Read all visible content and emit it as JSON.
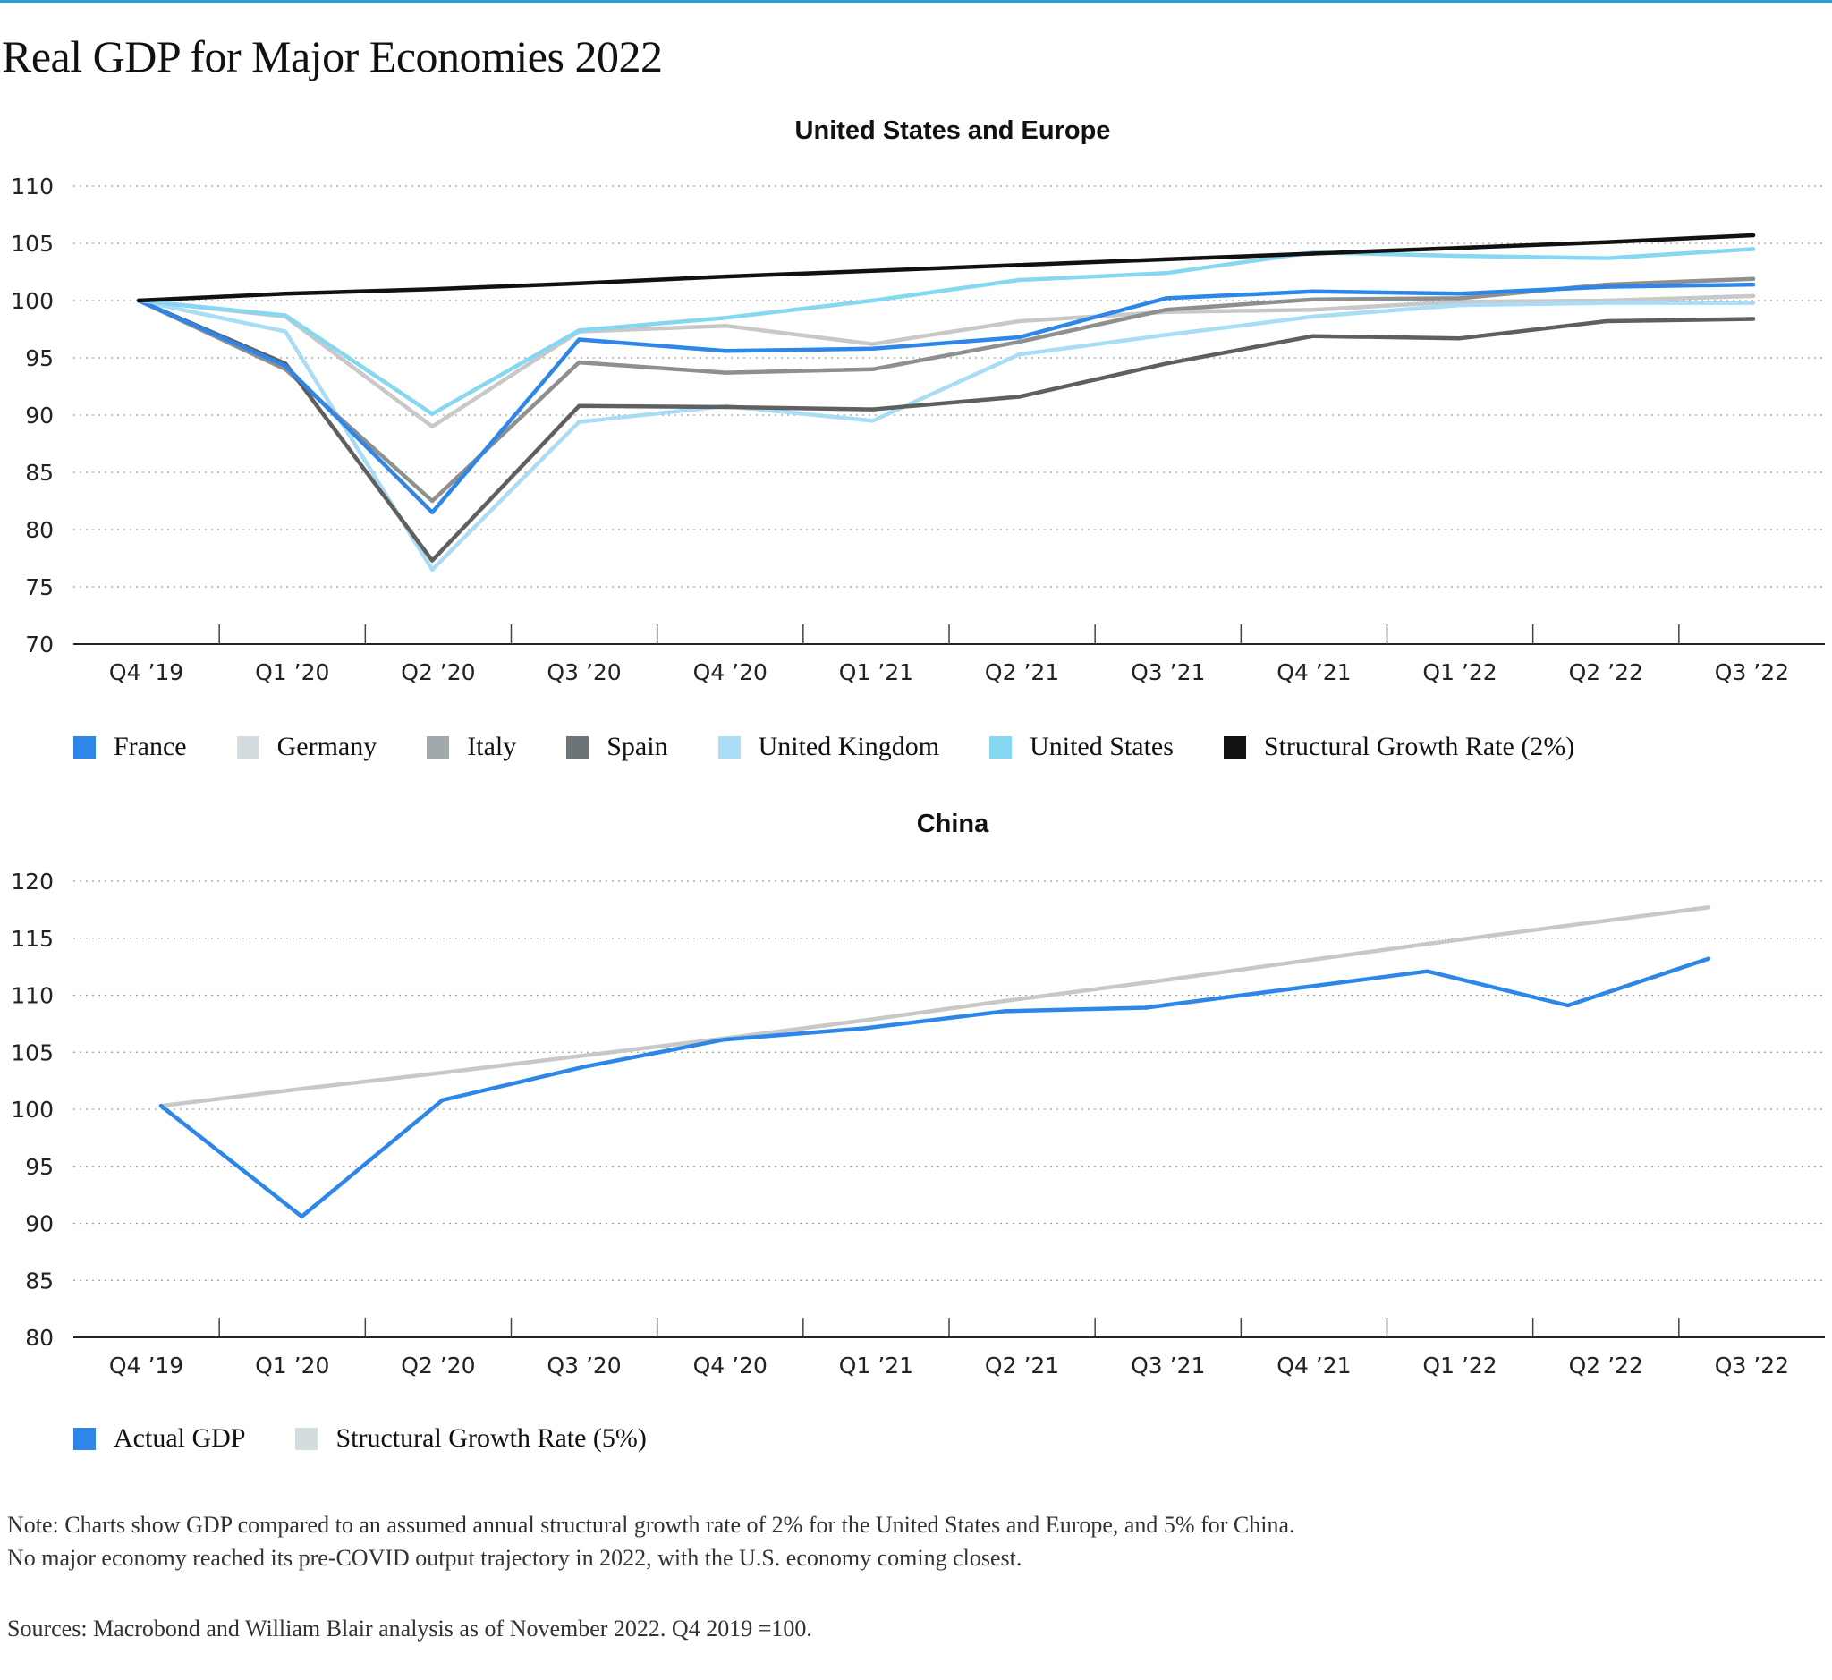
{
  "page": {
    "title": "Real GDP for Major Economies 2022",
    "note_line1": "Note: Charts show GDP compared to an assumed annual structural growth rate of 2% for the United States and Europe, and 5% for China.",
    "note_line2": "No major economy reached its pre-COVID output trajectory in 2022, with the U.S. economy coming closest.",
    "sources": "Sources: Macrobond and William Blair analysis as of November 2022. Q4 2019 =100."
  },
  "chart_data": [
    {
      "type": "line",
      "title": "United States and Europe",
      "categories": [
        "Q4 ’19",
        "Q1 ’20",
        "Q2 ’20",
        "Q3 ’20",
        "Q4 ’20",
        "Q1 ’21",
        "Q2 ’21",
        "Q3 ’21",
        "Q4 ’21",
        "Q1 ’22",
        "Q2 ’22",
        "Q3 ’22"
      ],
      "ylim": [
        70,
        110
      ],
      "yticks": [
        70,
        75,
        80,
        85,
        90,
        95,
        100,
        105,
        110
      ],
      "grid": true,
      "legend": "bottom",
      "series": [
        {
          "name": "Germany",
          "color": "#c8c8c8",
          "values": [
            100,
            98.6,
            89.0,
            97.3,
            97.8,
            96.2,
            98.2,
            99.0,
            99.2,
            99.9,
            100.0,
            100.4
          ]
        },
        {
          "name": "United Kingdom",
          "color": "#a9dcf5",
          "values": [
            100,
            97.3,
            76.5,
            89.4,
            90.8,
            89.5,
            95.3,
            97.0,
            98.6,
            99.6,
            99.8,
            99.8
          ]
        },
        {
          "name": "Italy",
          "color": "#8f8f8f",
          "values": [
            100,
            94.0,
            82.5,
            94.6,
            93.7,
            94.0,
            96.4,
            99.2,
            100.1,
            100.2,
            101.4,
            101.9
          ]
        },
        {
          "name": "Spain",
          "color": "#5f5f5f",
          "values": [
            100,
            94.5,
            77.3,
            90.8,
            90.7,
            90.5,
            91.6,
            94.5,
            96.9,
            96.7,
            98.2,
            98.4
          ]
        },
        {
          "name": "France",
          "color": "#2e86e8",
          "values": [
            100,
            94.3,
            81.5,
            96.6,
            95.6,
            95.8,
            96.8,
            100.2,
            100.8,
            100.6,
            101.2,
            101.4
          ]
        },
        {
          "name": "United States",
          "color": "#85d7f2",
          "values": [
            100,
            98.7,
            90.1,
            97.4,
            98.5,
            100.0,
            101.8,
            102.4,
            104.2,
            103.9,
            103.7,
            104.5
          ]
        },
        {
          "name": "Structural Growth Rate (2%)",
          "color": "#111111",
          "values": [
            100,
            100.6,
            101.0,
            101.5,
            102.1,
            102.6,
            103.1,
            103.6,
            104.1,
            104.6,
            105.1,
            105.7
          ]
        }
      ],
      "legend_items": [
        {
          "name": "France",
          "color": "#2e86e8"
        },
        {
          "name": "Germany",
          "color": "#d3dcde"
        },
        {
          "name": "Italy",
          "color": "#a0aaac"
        },
        {
          "name": "Spain",
          "color": "#6b7476"
        },
        {
          "name": "United Kingdom",
          "color": "#a9dcf5"
        },
        {
          "name": "United States",
          "color": "#85d7f2"
        },
        {
          "name": "Structural Growth Rate (2%)",
          "color": "#111111"
        }
      ]
    },
    {
      "type": "line",
      "title": "China",
      "categories": [
        "Q4 ’19",
        "Q1 ’20",
        "Q2 ’20",
        "Q3 ’20",
        "Q4 ’20",
        "Q1 ’21",
        "Q2 ’21",
        "Q3 ’21",
        "Q4 ’21",
        "Q1 ’22",
        "Q2 ’22",
        "Q3 ’22"
      ],
      "ylim": [
        80,
        120
      ],
      "yticks": [
        80,
        85,
        90,
        95,
        100,
        105,
        110,
        115,
        120
      ],
      "grid": true,
      "legend": "bottom",
      "series": [
        {
          "name": "Structural Growth Rate (5%)",
          "color": "#c8c8c8",
          "values": [
            100.3,
            101.8,
            103.2,
            104.7,
            106.2,
            107.8,
            109.5,
            111.1,
            112.8,
            114.5,
            116.1,
            117.7
          ]
        },
        {
          "name": "Actual GDP",
          "color": "#2e86e8",
          "values": [
            100.3,
            90.6,
            100.8,
            103.7,
            106.1,
            107.1,
            108.6,
            108.9,
            110.5,
            112.1,
            109.1,
            113.2
          ]
        }
      ],
      "legend_items": [
        {
          "name": "Actual GDP",
          "color": "#2e86e8"
        },
        {
          "name": "Structural Growth Rate (5%)",
          "color": "#d3dcde"
        }
      ]
    }
  ]
}
